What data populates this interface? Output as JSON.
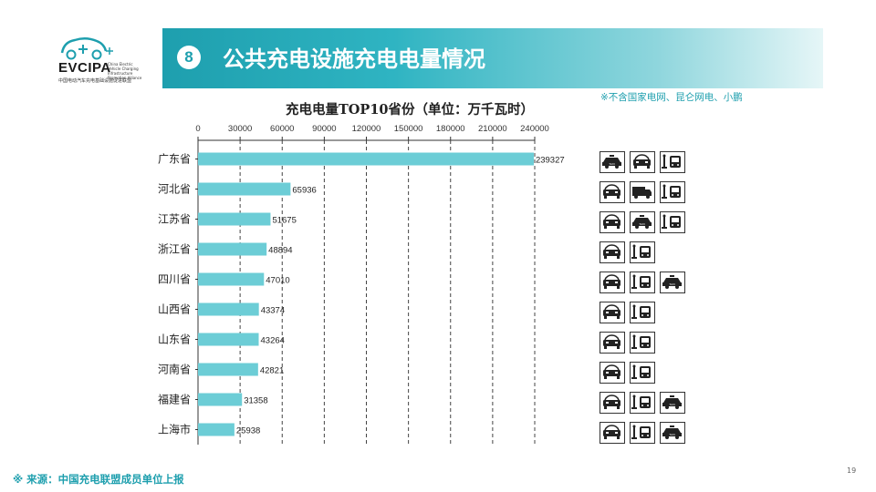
{
  "logo": {
    "text": "EVCIPA",
    "subtitle": "China Electric Vehicle Charging Infrastructure Promotion Alliance",
    "cn": "中国电动汽车充电基础设施促进联盟"
  },
  "header": {
    "number": "8",
    "title": "公共充电设施充电电量情况",
    "accent": "#1e9fae"
  },
  "note": "※不含国家电网、昆仑网电、小鹏",
  "chart_data": {
    "type": "bar",
    "orientation": "horizontal",
    "title": "充电电量TOP10省份（单位：万千瓦时）",
    "categories": [
      "广东省",
      "河北省",
      "江苏省",
      "浙江省",
      "四川省",
      "山西省",
      "山东省",
      "河南省",
      "福建省",
      "上海市"
    ],
    "values": [
      239327,
      65936,
      51675,
      48894,
      47010,
      43374,
      43264,
      42821,
      31358,
      25938
    ],
    "xlim": [
      0,
      240000
    ],
    "ticks": [
      "0",
      "30000",
      "60000",
      "90000",
      "120000",
      "150000",
      "180000",
      "210000",
      "240000"
    ],
    "bar_color": "#6ccdd6",
    "grid": "dashed vertical",
    "data_labels": true
  },
  "vehicle_icons": [
    [
      "taxi",
      "car",
      "charger-bus"
    ],
    [
      "car",
      "truck",
      "charger-bus"
    ],
    [
      "car",
      "taxi",
      "charger-bus"
    ],
    [
      "car",
      "charger-bus"
    ],
    [
      "car",
      "charger-bus",
      "taxi"
    ],
    [
      "car",
      "charger-bus"
    ],
    [
      "car",
      "charger-bus"
    ],
    [
      "car",
      "charger-bus"
    ],
    [
      "car",
      "charger-bus",
      "taxi"
    ],
    [
      "car",
      "charger-bus",
      "taxi"
    ]
  ],
  "footer": {
    "source": "※  来源：中国充电联盟成员单位上报",
    "page": "19"
  }
}
